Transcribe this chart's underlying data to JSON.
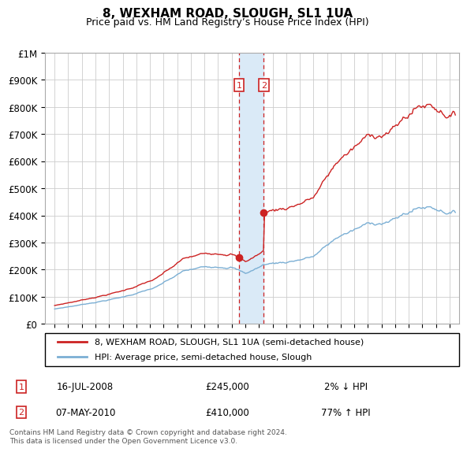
{
  "title": "8, WEXHAM ROAD, SLOUGH, SL1 1UA",
  "subtitle": "Price paid vs. HM Land Registry’s House Price Index (HPI)",
  "legend_line1": "8, WEXHAM ROAD, SLOUGH, SL1 1UA (semi-detached house)",
  "legend_line2": "HPI: Average price, semi-detached house, Slough",
  "footer": "Contains HM Land Registry data © Crown copyright and database right 2024.\nThis data is licensed under the Open Government Licence v3.0.",
  "transaction1_date": "16-JUL-2008",
  "transaction1_price": 245000,
  "transaction1_label": "2% ↓ HPI",
  "transaction2_date": "07-MAY-2010",
  "transaction2_price": 410000,
  "transaction2_label": "77% ↑ HPI",
  "hpi_color": "#7bafd4",
  "price_color": "#cc2222",
  "marker_box_color": "#cc2222",
  "highlight_fill": "#daeaf7",
  "ylim": [
    0,
    1000000
  ],
  "yticks": [
    0,
    100000,
    200000,
    300000,
    400000,
    500000,
    600000,
    700000,
    800000,
    900000,
    1000000
  ],
  "ytick_labels": [
    "£0",
    "£100K",
    "£200K",
    "£300K",
    "£400K",
    "£500K",
    "£600K",
    "£700K",
    "£800K",
    "£900K",
    "£1M"
  ],
  "t1_year": 2008.54,
  "t2_year": 2010.35,
  "t1_price": 245000,
  "t2_price": 410000,
  "xmin": 1995,
  "xmax": 2024.5
}
